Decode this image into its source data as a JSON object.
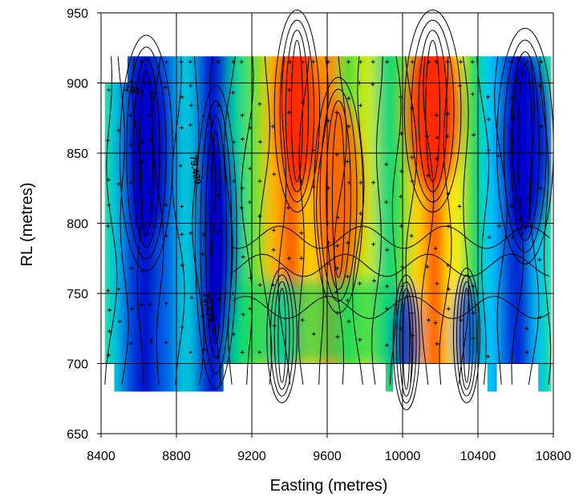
{
  "chart_data": {
    "type": "heatmap",
    "title": "",
    "xlabel": "Easting (metres)",
    "ylabel": "RL (metres)",
    "xlim": [
      8400,
      10800
    ],
    "ylim": [
      650,
      950
    ],
    "x_ticks": [
      "8400",
      "8800",
      "9200",
      "9600",
      "10000",
      "10400",
      "10800"
    ],
    "y_ticks": [
      "650",
      "700",
      "750",
      "800",
      "850",
      "900",
      "950"
    ],
    "x_tick_values": [
      8400,
      8800,
      9200,
      9600,
      10000,
      10400,
      10800
    ],
    "y_tick_values": [
      650,
      700,
      750,
      800,
      850,
      900,
      950
    ],
    "grid": true,
    "colormap": [
      "#0000cc",
      "#00c8ff",
      "#00dd44",
      "#ffee00",
      "#ff2200"
    ],
    "contour_labels": [
      {
        "text": "100",
        "x": 8520,
        "y": 895
      },
      {
        "text": "79.439",
        "x": 8870,
        "y": 848
      },
      {
        "text": "79.439",
        "x": 8940,
        "y": 750
      }
    ],
    "bands": [
      {
        "x": 8420,
        "v": 0.5
      },
      {
        "x": 8480,
        "v": 0.28
      },
      {
        "x": 8550,
        "v": 0.08
      },
      {
        "x": 8650,
        "v": 0.0
      },
      {
        "x": 8760,
        "v": 0.12
      },
      {
        "x": 8860,
        "v": 0.3
      },
      {
        "x": 8960,
        "v": 0.05
      },
      {
        "x": 9040,
        "v": 0.02
      },
      {
        "x": 9130,
        "v": 0.4
      },
      {
        "x": 9230,
        "v": 0.6
      },
      {
        "x": 9320,
        "v": 0.82
      },
      {
        "x": 9420,
        "v": 0.95
      },
      {
        "x": 9520,
        "v": 0.78
      },
      {
        "x": 9620,
        "v": 0.88
      },
      {
        "x": 9720,
        "v": 0.55
      },
      {
        "x": 9820,
        "v": 0.7
      },
      {
        "x": 9920,
        "v": 0.42
      },
      {
        "x": 10000,
        "v": 0.55
      },
      {
        "x": 10080,
        "v": 0.78
      },
      {
        "x": 10180,
        "v": 0.95
      },
      {
        "x": 10280,
        "v": 0.75
      },
      {
        "x": 10380,
        "v": 0.5
      },
      {
        "x": 10480,
        "v": 0.25
      },
      {
        "x": 10560,
        "v": 0.08
      },
      {
        "x": 10650,
        "v": 0.02
      },
      {
        "x": 10730,
        "v": 0.25
      },
      {
        "x": 10790,
        "v": 0.45
      }
    ],
    "lows": [
      {
        "x": 8640,
        "y": 850,
        "rx": 140,
        "ry": 70,
        "v": 0.0
      },
      {
        "x": 9010,
        "y": 790,
        "rx": 110,
        "ry": 90,
        "v": 0.0
      },
      {
        "x": 10650,
        "y": 855,
        "rx": 150,
        "ry": 70,
        "v": 0.0
      },
      {
        "x": 10020,
        "y": 715,
        "rx": 70,
        "ry": 40,
        "v": 0.05
      },
      {
        "x": 10340,
        "y": 720,
        "rx": 70,
        "ry": 40,
        "v": 0.1
      },
      {
        "x": 9360,
        "y": 720,
        "rx": 80,
        "ry": 40,
        "v": 0.3
      }
    ],
    "highs": [
      {
        "x": 9440,
        "y": 880,
        "rx": 120,
        "ry": 60,
        "v": 1.0
      },
      {
        "x": 10160,
        "y": 880,
        "rx": 150,
        "ry": 60,
        "v": 1.0
      },
      {
        "x": 9660,
        "y": 820,
        "rx": 130,
        "ry": 70,
        "v": 0.92
      }
    ]
  }
}
